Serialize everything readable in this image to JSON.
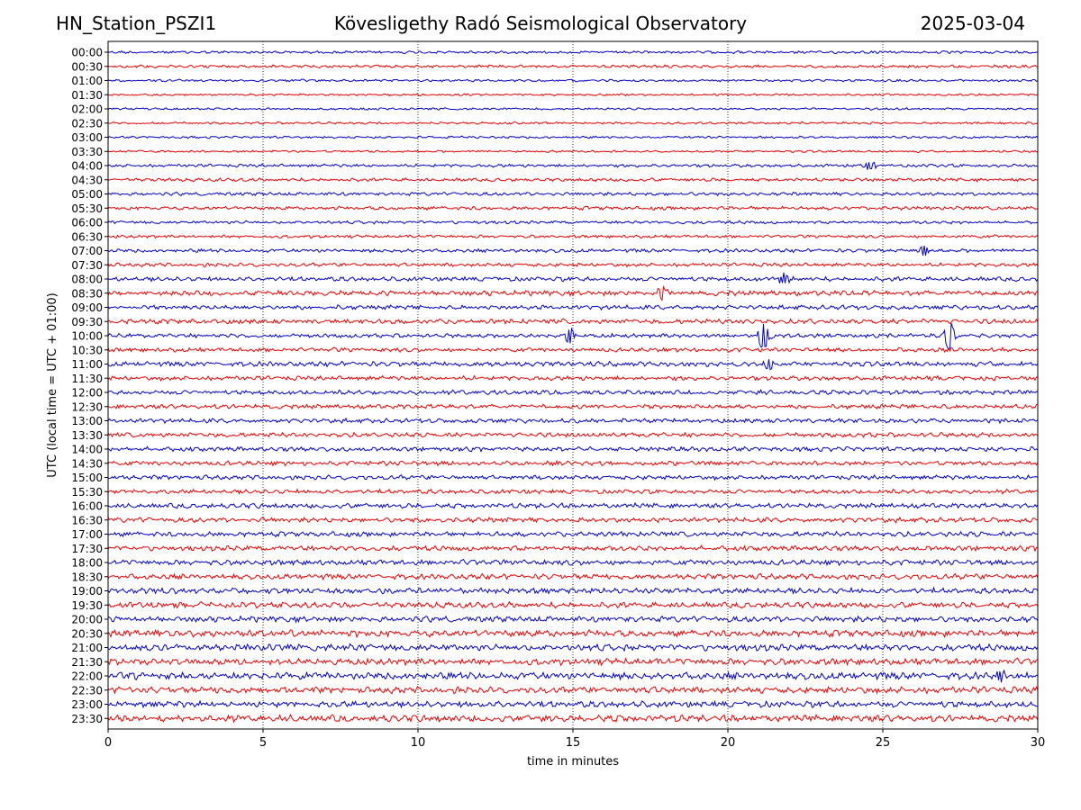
{
  "header": {
    "station": "HN_Station_PSZI1",
    "observatory": "Kövesligethy Radó Seismological Observatory",
    "date": "2025-03-04"
  },
  "chart_data": {
    "type": "line",
    "title": "Kövesligethy Radó Seismological Observatory",
    "xlabel": "time in minutes",
    "ylabel": "UTC (local time = UTC + 01:00)",
    "xlim": [
      0,
      30
    ],
    "x_ticks": [
      0,
      5,
      10,
      15,
      20,
      25,
      30
    ],
    "vertical_gridlines_at": [
      5,
      10,
      15,
      20,
      25
    ],
    "trace_colors": [
      "#0000cc",
      "#ee0000"
    ],
    "row_labels": [
      "00:00",
      "00:30",
      "01:00",
      "01:30",
      "02:00",
      "02:30",
      "03:00",
      "03:30",
      "04:00",
      "04:30",
      "05:00",
      "05:30",
      "06:00",
      "06:30",
      "07:00",
      "07:30",
      "08:00",
      "08:30",
      "09:00",
      "09:30",
      "10:00",
      "10:30",
      "11:00",
      "11:30",
      "12:00",
      "12:30",
      "13:00",
      "13:30",
      "14:00",
      "14:30",
      "15:00",
      "15:30",
      "16:00",
      "16:30",
      "17:00",
      "17:30",
      "18:00",
      "18:30",
      "19:00",
      "19:30",
      "20:00",
      "20:30",
      "21:00",
      "21:30",
      "22:00",
      "22:30",
      "23:00",
      "23:30"
    ],
    "noise_amplitude": [
      1.2,
      1.3,
      1.1,
      1.0,
      1.0,
      1.0,
      1.0,
      1.0,
      1.4,
      1.5,
      1.5,
      1.6,
      1.4,
      1.4,
      1.6,
      1.7,
      2.0,
      2.3,
      2.0,
      2.2,
      1.8,
      1.9,
      2.2,
      2.0,
      2.0,
      2.0,
      2.0,
      2.0,
      2.0,
      2.0,
      2.0,
      2.0,
      2.2,
      2.2,
      2.2,
      2.3,
      2.4,
      2.4,
      2.6,
      2.6,
      2.6,
      3.0,
      3.0,
      3.0,
      3.2,
      3.0,
      2.8,
      3.0
    ],
    "events": [
      {
        "row": "10:00",
        "minute": 14.9,
        "amplitude": 8
      },
      {
        "row": "10:00",
        "minute": 21.15,
        "amplitude": 14
      },
      {
        "row": "10:00",
        "minute": 27.15,
        "amplitude": 14
      },
      {
        "row": "04:00",
        "minute": 24.6,
        "amplitude": 5
      },
      {
        "row": "07:00",
        "minute": 26.3,
        "amplitude": 5
      },
      {
        "row": "08:00",
        "minute": 21.8,
        "amplitude": 5
      },
      {
        "row": "08:30",
        "minute": 17.9,
        "amplitude": 6
      },
      {
        "row": "11:00",
        "minute": 21.3,
        "amplitude": 5
      },
      {
        "row": "22:00",
        "minute": 28.8,
        "amplitude": 5
      }
    ]
  }
}
